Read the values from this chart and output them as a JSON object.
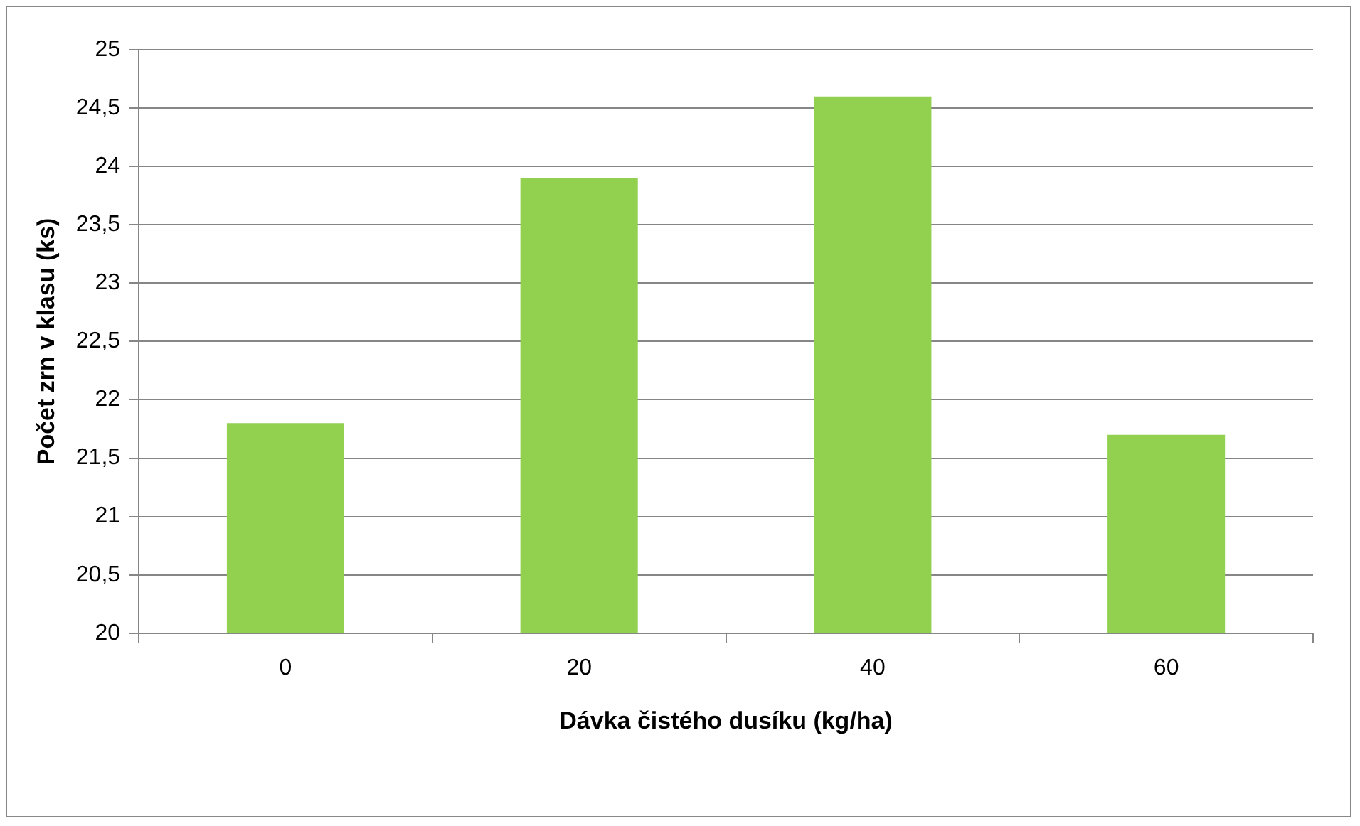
{
  "chart_data": {
    "type": "bar",
    "xlabel": "Dávka čistého dusíku (kg/ha)",
    "ylabel": "Počet zrn v klasu (ks)",
    "categories": [
      "0",
      "20",
      "40",
      "60"
    ],
    "values": [
      21.8,
      23.9,
      24.6,
      21.7
    ],
    "color": "#92d050",
    "ylim": [
      20,
      25
    ],
    "yticks": [
      20,
      {
        "value": 20.5,
        "label": "20,5"
      },
      21,
      {
        "value": 21.5,
        "label": "21,5"
      },
      22,
      {
        "value": 22.5,
        "label": "22,5"
      },
      23,
      {
        "value": 23.5,
        "label": "23,5"
      },
      24,
      {
        "value": 24.5,
        "label": "24,5"
      },
      25
    ],
    "grid": "y",
    "legend": false
  }
}
